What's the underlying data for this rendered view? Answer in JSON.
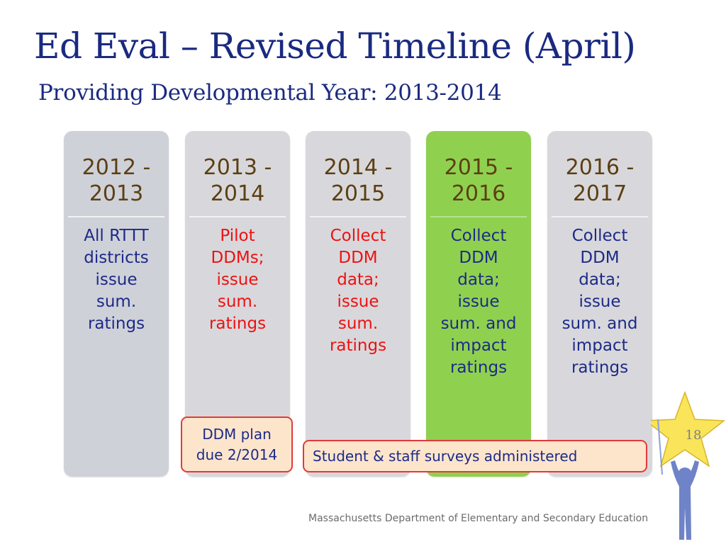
{
  "slide": {
    "title": "Ed Eval – Revised Timeline (April)",
    "subtitle": "Providing Developmental Year:  2013-2014",
    "page_number": "18",
    "footer": "Massachusetts Department of Elementary and Secondary Education"
  },
  "columns": [
    {
      "year_line1": "2012 -",
      "year_line2": "2013",
      "desc": [
        "All RTTT",
        "districts",
        "issue",
        "sum.",
        "ratings"
      ],
      "desc_color": "navy"
    },
    {
      "year_line1": "2013 -",
      "year_line2": "2014",
      "desc": [
        "Pilot",
        "DDMs;",
        "issue",
        "sum.",
        "ratings"
      ],
      "desc_color": "red"
    },
    {
      "year_line1": "2014 -",
      "year_line2": "2015",
      "desc": [
        "Collect",
        "DDM",
        "data;",
        "issue",
        "sum.",
        "ratings"
      ],
      "desc_color": "red"
    },
    {
      "year_line1": "2015 -",
      "year_line2": "2016",
      "desc": [
        "Collect",
        "DDM",
        "data;",
        "issue",
        "sum. and",
        "impact",
        "ratings"
      ],
      "desc_color": "navy",
      "highlighted": true
    },
    {
      "year_line1": "2016 -",
      "year_line2": "2017",
      "desc": [
        "Collect",
        "DDM",
        "data;",
        "issue",
        "sum. and",
        "impact",
        "ratings"
      ],
      "desc_color": "navy"
    }
  ],
  "callouts": {
    "ddm_plan_line1": "DDM plan",
    "ddm_plan_line2": "due 2/2014",
    "surveys": "Student & staff surveys administered"
  },
  "colors": {
    "title": "#1a2a80",
    "column_gray": "#d8d8dc",
    "column_green": "#8fd14f",
    "year_text": "#5c3f12",
    "desc_navy": "#1d2a86",
    "desc_red": "#ee1111",
    "callout_fill": "#fde5cc",
    "callout_border": "#e23a3a",
    "star": "#f9e45a",
    "figure": "#6f83c8"
  },
  "icons": {
    "star_figure": "person-holding-star-icon"
  }
}
